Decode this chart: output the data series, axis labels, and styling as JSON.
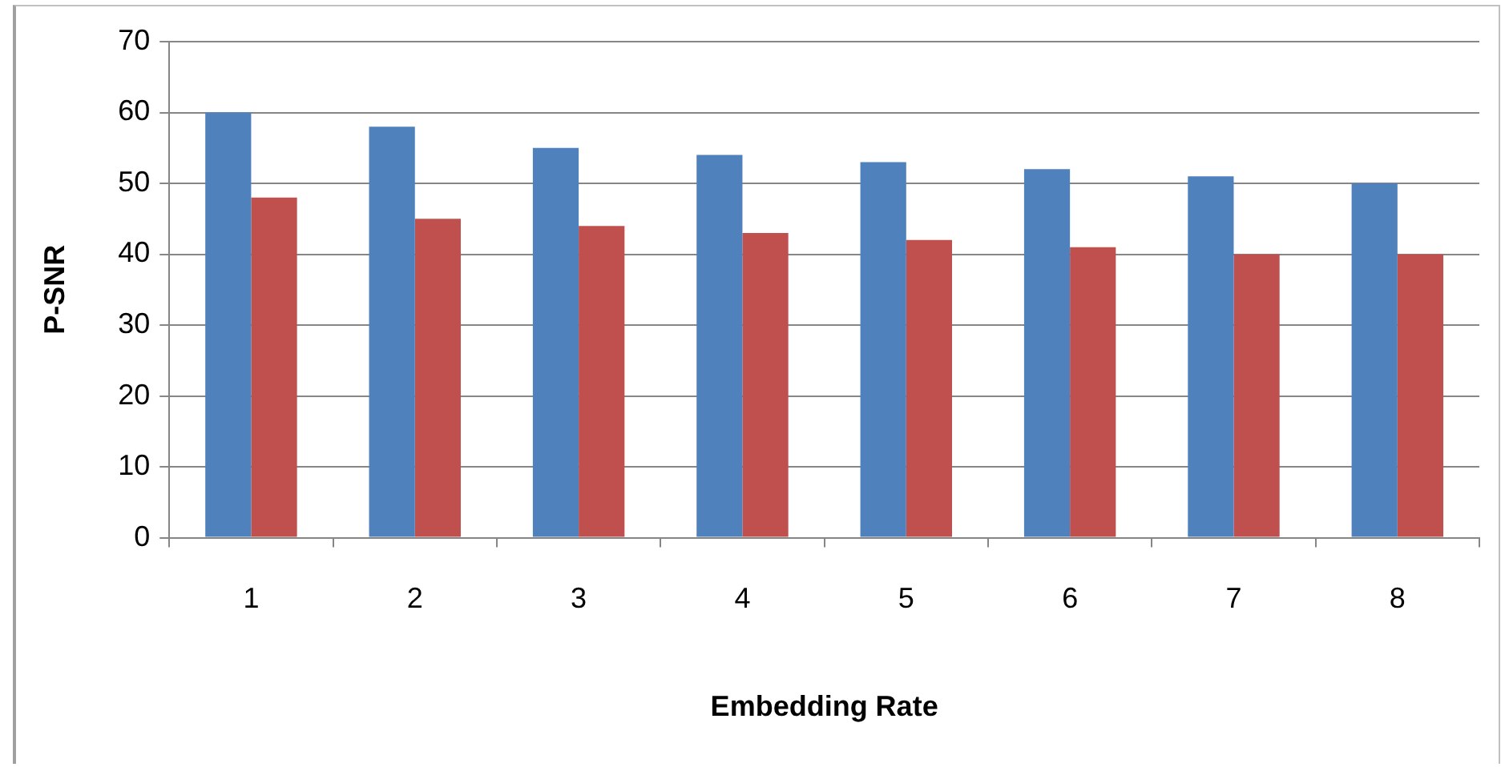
{
  "chart_data": {
    "type": "bar",
    "xlabel": "Embedding Rate",
    "ylabel": "P-SNR",
    "categories": [
      "1",
      "2",
      "3",
      "4",
      "5",
      "6",
      "7",
      "8"
    ],
    "series": [
      {
        "color": "#4f81bd",
        "values": [
          60,
          58,
          55,
          54,
          53,
          52,
          51,
          50
        ]
      },
      {
        "color": "#c0504d",
        "values": [
          48,
          45,
          44,
          43,
          42,
          41,
          40,
          40
        ]
      }
    ],
    "ylim": [
      0,
      70
    ],
    "yticks": [
      0,
      10,
      20,
      30,
      40,
      50,
      60,
      70
    ],
    "grid": "y",
    "legend": false
  }
}
